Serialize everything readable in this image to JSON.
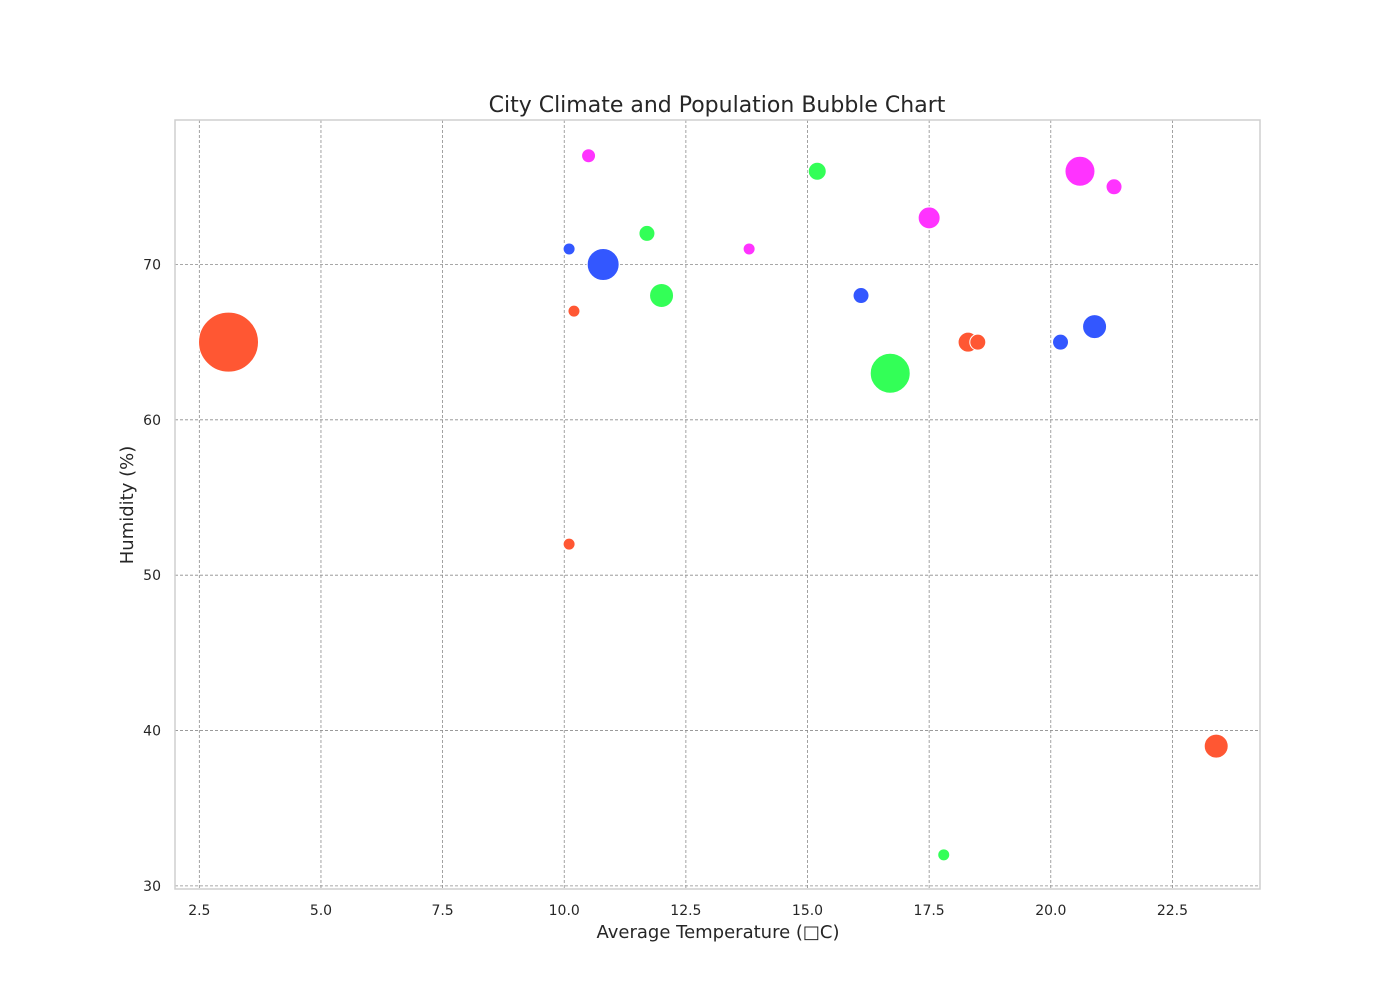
{
  "chart_data": {
    "type": "scatter",
    "title": "City Climate and Population Bubble Chart",
    "xlabel": "Average Temperature (□C)",
    "ylabel": "Humidity (%)",
    "xlim": [
      2.0,
      24.3
    ],
    "ylim": [
      29.8,
      79.3
    ],
    "x_ticks": [
      2.5,
      5.0,
      7.5,
      10.0,
      12.5,
      15.0,
      17.5,
      20.0,
      22.5
    ],
    "x_tick_labels": [
      "2.5",
      "5.0",
      "7.5",
      "10.0",
      "12.5",
      "15.0",
      "17.5",
      "20.0",
      "22.5"
    ],
    "y_ticks": [
      30,
      40,
      50,
      60,
      70
    ],
    "y_tick_labels": [
      "30",
      "40",
      "50",
      "60",
      "70"
    ],
    "grid": true,
    "legend": "none",
    "colors": {
      "red": "#ff5733",
      "green": "#33ff57",
      "blue": "#3357ff",
      "magenta": "#ff33ff"
    },
    "points": [
      {
        "x": 3.1,
        "y": 65,
        "size": 30,
        "color": "#ff5733"
      },
      {
        "x": 10.1,
        "y": 52,
        "size": 6,
        "color": "#ff5733"
      },
      {
        "x": 10.2,
        "y": 67,
        "size": 6,
        "color": "#ff5733"
      },
      {
        "x": 18.3,
        "y": 65,
        "size": 10,
        "color": "#ff5733"
      },
      {
        "x": 18.5,
        "y": 65,
        "size": 8,
        "color": "#ff5733"
      },
      {
        "x": 23.4,
        "y": 39,
        "size": 12,
        "color": "#ff5733"
      },
      {
        "x": 10.1,
        "y": 71,
        "size": 6,
        "color": "#3357ff"
      },
      {
        "x": 10.8,
        "y": 70,
        "size": 16,
        "color": "#3357ff"
      },
      {
        "x": 16.1,
        "y": 68,
        "size": 8,
        "color": "#3357ff"
      },
      {
        "x": 20.2,
        "y": 65,
        "size": 8,
        "color": "#3357ff"
      },
      {
        "x": 20.9,
        "y": 66,
        "size": 12,
        "color": "#3357ff"
      },
      {
        "x": 11.7,
        "y": 72,
        "size": 8,
        "color": "#33ff57"
      },
      {
        "x": 12.0,
        "y": 68,
        "size": 12,
        "color": "#33ff57"
      },
      {
        "x": 15.2,
        "y": 76,
        "size": 9,
        "color": "#33ff57"
      },
      {
        "x": 16.7,
        "y": 63,
        "size": 20,
        "color": "#33ff57"
      },
      {
        "x": 17.8,
        "y": 32,
        "size": 6,
        "color": "#33ff57"
      },
      {
        "x": 10.5,
        "y": 77,
        "size": 7,
        "color": "#ff33ff"
      },
      {
        "x": 13.8,
        "y": 71,
        "size": 6,
        "color": "#ff33ff"
      },
      {
        "x": 17.5,
        "y": 73,
        "size": 11,
        "color": "#ff33ff"
      },
      {
        "x": 20.6,
        "y": 76,
        "size": 15,
        "color": "#ff33ff"
      },
      {
        "x": 21.3,
        "y": 75,
        "size": 8,
        "color": "#ff33ff"
      }
    ]
  }
}
